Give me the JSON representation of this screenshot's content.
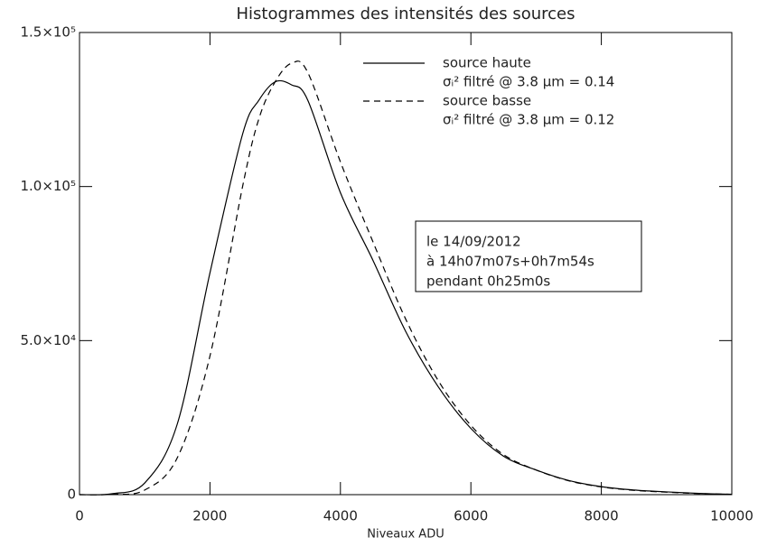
{
  "chart_data": {
    "type": "line",
    "title": "Histogrammes des intensités des sources",
    "x_label": "Niveaux ADU",
    "x": [
      0,
      500,
      1000,
      1500,
      2000,
      2500,
      2750,
      3000,
      3250,
      3500,
      4000,
      4500,
      5000,
      5500,
      6000,
      6500,
      7000,
      7500,
      8000,
      8500,
      9000,
      9500,
      10000
    ],
    "series": [
      {
        "name": "source haute",
        "description": "σᵢ² filtré @ 3.8 μm = 0.14",
        "color": "#000000",
        "dash": "solid",
        "values": [
          0,
          300,
          3800,
          23000,
          72000,
          117000,
          128000,
          134000,
          133000,
          128000,
          98000,
          76000,
          53000,
          35000,
          21500,
          12500,
          8000,
          4600,
          2600,
          1500,
          900,
          400,
          100
        ]
      },
      {
        "name": "source basse",
        "description": "σᵢ² filtré @ 3.8 μm = 0.12",
        "color": "#000000",
        "dash": "dashed",
        "values": [
          0,
          100,
          1500,
          12000,
          45000,
          100000,
          122000,
          134000,
          140000,
          137000,
          108000,
          82000,
          57000,
          37000,
          22500,
          13000,
          8000,
          4500,
          2500,
          1400,
          800,
          350,
          100
        ]
      }
    ],
    "annotation": [
      "le 14/09/2012",
      "à 14h07m07s+0h7m54s",
      "pendant 0h25m0s"
    ],
    "xlim": [
      0,
      10000
    ],
    "xticks": [
      0,
      2000,
      4000,
      6000,
      8000,
      10000
    ],
    "ylim": [
      0,
      150000
    ],
    "yticks": [
      0,
      {
        "value": 50000,
        "label": "5.0×10⁴"
      },
      {
        "value": 100000,
        "label": "1.0×10⁵"
      },
      {
        "value": 150000,
        "label": "1.5×10⁵"
      }
    ],
    "grid": false
  }
}
